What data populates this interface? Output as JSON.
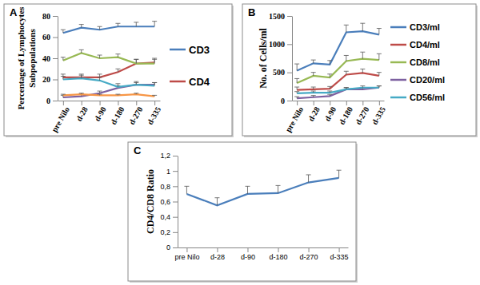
{
  "chart_data": [
    {
      "type": "line",
      "title": "A",
      "categories": [
        "pre Nilo",
        "d-28",
        "d-90",
        "d-180",
        "d-270",
        "d-335"
      ],
      "ylabel": [
        "Percentage of Lymphocytes",
        "Subpopulations"
      ],
      "ylim": [
        0,
        80
      ],
      "yticks": [
        0,
        20,
        40,
        60,
        80
      ],
      "grid": false,
      "legend": "right",
      "series": [
        {
          "name": "CD3",
          "color": "#4a7ebb",
          "values": [
            64,
            69,
            67,
            70,
            70,
            70
          ],
          "errors": [
            3,
            3,
            3,
            3,
            4,
            5
          ]
        },
        {
          "name": "CD4",
          "color": "#be4b48",
          "values": [
            22,
            22,
            22,
            27,
            35,
            36
          ],
          "errors": [
            3,
            3,
            3,
            3,
            4,
            4
          ]
        },
        {
          "name": null,
          "color": "#98b954",
          "values": [
            38,
            45,
            40,
            41,
            35,
            35
          ],
          "errors": [
            3,
            3,
            3,
            3,
            4,
            4
          ]
        },
        {
          "name": null,
          "color": "#7d60a0",
          "values": [
            3,
            4,
            7,
            12,
            15,
            15
          ],
          "errors": [
            2,
            2,
            2,
            2,
            2,
            2
          ]
        },
        {
          "name": null,
          "color": "#46aac5",
          "values": [
            20,
            21,
            19,
            13,
            15,
            14
          ],
          "errors": [
            3,
            3,
            3,
            3,
            3,
            3
          ]
        },
        {
          "name": null,
          "color": "#f79646",
          "values": [
            5,
            6,
            5,
            5,
            6,
            4
          ],
          "errors": [
            1,
            1,
            1,
            1,
            1,
            1
          ]
        }
      ]
    },
    {
      "type": "line",
      "title": "B",
      "categories": [
        "pre Nilo",
        "d-28",
        "d-90",
        "d-180",
        "d-270",
        "d-335"
      ],
      "ylabel": "No. of Cells/ml",
      "ylim": [
        0,
        1500
      ],
      "yticks": [
        0,
        500,
        1000,
        1500
      ],
      "grid": false,
      "legend": "right",
      "series": [
        {
          "name": "CD3/ml",
          "color": "#4a7ebb",
          "values": [
            530,
            660,
            640,
            1210,
            1230,
            1170
          ],
          "errors": [
            120,
            60,
            70,
            130,
            140,
            110
          ]
        },
        {
          "name": "CD4/ml",
          "color": "#be4b48",
          "values": [
            190,
            200,
            210,
            460,
            490,
            440
          ],
          "errors": [
            50,
            40,
            40,
            60,
            70,
            60
          ]
        },
        {
          "name": "CD8/ml",
          "color": "#98b954",
          "values": [
            310,
            440,
            410,
            700,
            740,
            720
          ],
          "errors": [
            80,
            60,
            60,
            100,
            120,
            110
          ]
        },
        {
          "name": "CD20/ml",
          "color": "#7d60a0",
          "values": [
            40,
            60,
            80,
            200,
            200,
            230
          ],
          "errors": [
            30,
            30,
            30,
            30,
            30,
            30
          ]
        },
        {
          "name": "CD56/ml",
          "color": "#46aac5",
          "values": [
            130,
            140,
            140,
            200,
            230,
            230
          ],
          "errors": [
            30,
            30,
            30,
            30,
            30,
            30
          ]
        }
      ]
    },
    {
      "type": "line",
      "title": "C",
      "categories": [
        "pre Nilo",
        "d-28",
        "d-90",
        "d-180",
        "d-270",
        "d-335"
      ],
      "ylabel": "CD4/CD8 Ratio",
      "ylim": [
        0,
        1.2
      ],
      "yticks": [
        0,
        {
          "value": 0.2,
          "label": "0,2"
        },
        {
          "value": 0.4,
          "label": "0,4"
        },
        {
          "value": 0.6,
          "label": "0,6"
        },
        {
          "value": 0.8,
          "label": "0,8"
        },
        1,
        {
          "value": 1.2,
          "label": "1,2"
        }
      ],
      "grid": false,
      "series": [
        {
          "name": null,
          "color": "#4a7ebb",
          "values": [
            0.7,
            0.55,
            0.7,
            0.71,
            0.85,
            0.91
          ],
          "errors": [
            0.1,
            0.1,
            0.1,
            0.1,
            0.1,
            0.1
          ]
        }
      ]
    }
  ]
}
